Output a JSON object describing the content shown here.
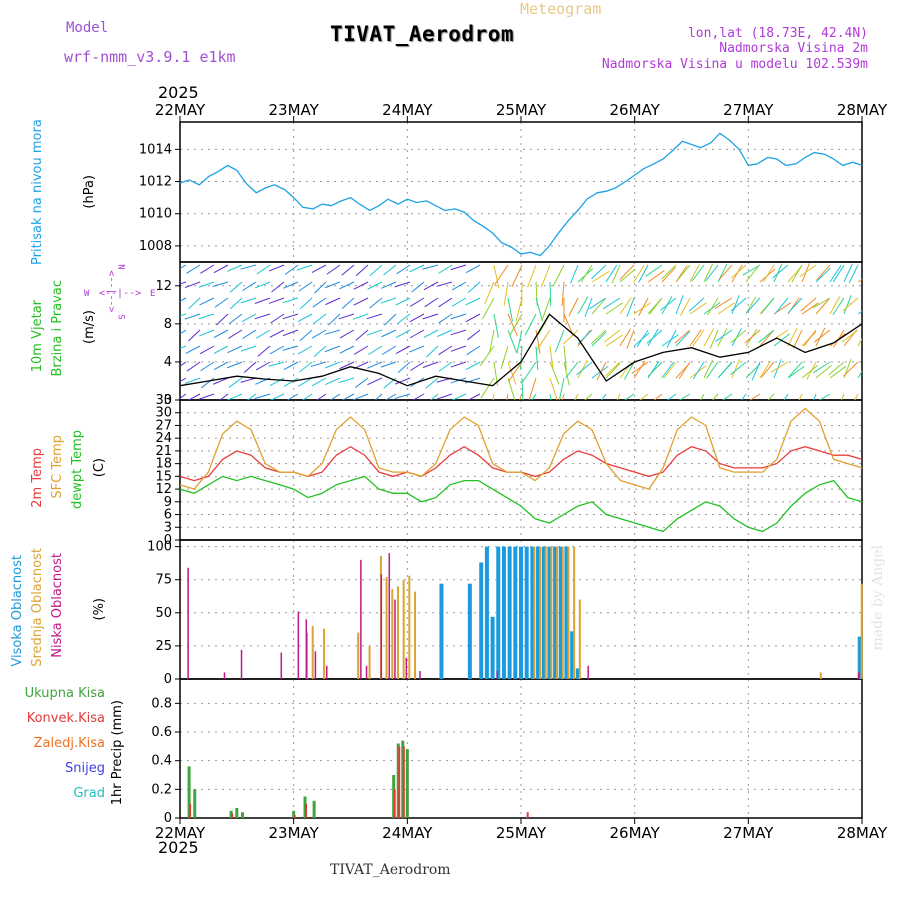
{
  "header": {
    "model_label": "Model",
    "model_name": "wrf-nmm_v3.9.1 e1km",
    "meteogram": "Meteogram",
    "title": "TIVAT_Aerodrom",
    "lonlat": "lon,lat (18.73E, 42.4N)",
    "elevation": "Nadmorska Visina 2m",
    "model_elevation": "Nadmorska Visina u modelu 102.539m",
    "year_top": "2025",
    "year_bottom": "2025",
    "footer": "TIVAT_Aerodrom",
    "credit": "made by Angel"
  },
  "colors": {
    "pressure": "#1ca3e3",
    "temp2m": "#e83c3c",
    "sfc": "#e0a030",
    "dew": "#22c022",
    "high_cloud": "#1a9be0",
    "mid_cloud": "#d9a431",
    "low_cloud": "#c01888",
    "total_precip": "#3fa33f",
    "conv_precip": "#e23a3a",
    "model_label": "#a050d0",
    "info_label": "#b03ad8"
  },
  "chart_data": [
    {
      "type": "line",
      "panel": "pressure",
      "ylabel": "Pritisak na nivou mora",
      "unit": "(hPa)",
      "ylim": [
        1007,
        1015.7
      ],
      "yticks": [
        1008,
        1010,
        1012,
        1014
      ],
      "xticks": [
        "22MAY",
        "23MAY",
        "24MAY",
        "25MAY",
        "26MAY",
        "27MAY",
        "28MAY"
      ],
      "grid": true,
      "series": [
        {
          "x": [
            0,
            0.08,
            0.17,
            0.25,
            0.33,
            0.42,
            0.5,
            0.58,
            0.67,
            0.75,
            0.83,
            0.92,
            1,
            1.08,
            1.17,
            1.25,
            1.33,
            1.42,
            1.5,
            1.58,
            1.67,
            1.75,
            1.83,
            1.92,
            2,
            2.08,
            2.17,
            2.25,
            2.33,
            2.42,
            2.5,
            2.58,
            2.67,
            2.75,
            2.83,
            2.92,
            3,
            3.08,
            3.17,
            3.25,
            3.33,
            3.42,
            3.5,
            3.58,
            3.67,
            3.75,
            3.83,
            3.92,
            4,
            4.08,
            4.17,
            4.25,
            4.33,
            4.42,
            4.5,
            4.58,
            4.67,
            4.75,
            4.83,
            4.92,
            5,
            5.08,
            5.17,
            5.25,
            5.33,
            5.42,
            5.5,
            5.58,
            5.67,
            5.75,
            5.83,
            5.92,
            6
          ],
          "values": [
            1011.9,
            1012.1,
            1011.8,
            1012.3,
            1012.6,
            1013.0,
            1012.7,
            1011.9,
            1011.3,
            1011.6,
            1011.8,
            1011.5,
            1011.0,
            1010.4,
            1010.3,
            1010.6,
            1010.5,
            1010.8,
            1011.0,
            1010.6,
            1010.2,
            1010.5,
            1010.9,
            1010.6,
            1010.9,
            1010.7,
            1010.8,
            1010.5,
            1010.2,
            1010.3,
            1010.1,
            1009.6,
            1009.2,
            1008.8,
            1008.2,
            1007.9,
            1007.5,
            1007.6,
            1007.4,
            1008.0,
            1008.8,
            1009.6,
            1010.2,
            1010.9,
            1011.3,
            1011.4,
            1011.6,
            1012.0,
            1012.4,
            1012.8,
            1013.1,
            1013.4,
            1013.9,
            1014.5,
            1014.3,
            1014.1,
            1014.4,
            1015.0,
            1014.6,
            1014.0,
            1013.0,
            1013.1,
            1013.5,
            1013.4,
            1013.0,
            1013.1,
            1013.5,
            1013.8,
            1013.7,
            1013.4,
            1013.0,
            1013.2,
            1013.0
          ],
          "color": "#1ca3e3"
        }
      ]
    },
    {
      "type": "line",
      "panel": "wind",
      "ylabel": "10m Vjetar",
      "ylabel2": "Brzina i Pravac",
      "unit": "(m/s)",
      "ylim": [
        0,
        14.5
      ],
      "yticks": [
        0,
        4,
        8,
        12
      ],
      "legend": {
        "north": "N",
        "east": "E",
        "west": "W",
        "south": "S",
        "direction_arrows": "<--|-->"
      },
      "grid": true,
      "series": [
        {
          "name": "",
          "x": [
            0,
            0.25,
            0.5,
            0.75,
            1,
            1.25,
            1.5,
            1.75,
            2,
            2.25,
            2.5,
            2.75,
            3,
            3.25,
            3.5,
            3.75,
            4,
            4.25,
            4.5,
            4.75,
            5,
            5.25,
            5.5,
            5.75,
            6
          ],
          "values": [
            1.5,
            2.0,
            2.5,
            2.2,
            2.0,
            2.5,
            3.5,
            2.8,
            1.5,
            2.5,
            2.0,
            1.5,
            4.0,
            9.0,
            6.5,
            2.0,
            4.0,
            5.0,
            5.5,
            4.5,
            5.0,
            6.5,
            5.0,
            6.0,
            8.0
          ],
          "color": "#000000"
        }
      ]
    },
    {
      "type": "line",
      "panel": "temperature",
      "unit": "(C)",
      "ylim": [
        0,
        33
      ],
      "yticks": [
        0,
        3,
        6,
        9,
        12,
        15,
        18,
        21,
        24,
        27,
        30,
        33
      ],
      "grid": true,
      "series": [
        {
          "name": "2m Temp",
          "color": "#e83c3c",
          "x": [
            0,
            0.125,
            0.25,
            0.375,
            0.5,
            0.625,
            0.75,
            0.875,
            1,
            1.125,
            1.25,
            1.375,
            1.5,
            1.625,
            1.75,
            1.875,
            2,
            2.125,
            2.25,
            2.375,
            2.5,
            2.625,
            2.75,
            2.875,
            3,
            3.125,
            3.25,
            3.375,
            3.5,
            3.625,
            3.75,
            3.875,
            4,
            4.125,
            4.25,
            4.375,
            4.5,
            4.625,
            4.75,
            4.875,
            5,
            5.125,
            5.25,
            5.375,
            5.5,
            5.625,
            5.75,
            5.875,
            6
          ],
          "values": [
            15,
            14,
            15,
            19,
            21,
            20,
            17,
            16,
            16,
            15,
            16,
            20,
            22,
            20,
            16,
            15,
            16,
            15,
            17,
            20,
            22,
            20,
            17,
            16,
            16,
            15,
            16,
            19,
            21,
            20,
            18,
            17,
            16,
            15,
            16,
            20,
            22,
            21,
            18,
            17,
            17,
            17,
            18,
            21,
            22,
            21,
            20,
            20,
            19
          ]
        },
        {
          "name": "SFC Temp",
          "color": "#e0a030",
          "x": [
            0,
            0.125,
            0.25,
            0.375,
            0.5,
            0.625,
            0.75,
            0.875,
            1,
            1.125,
            1.25,
            1.375,
            1.5,
            1.625,
            1.75,
            1.875,
            2,
            2.125,
            2.25,
            2.375,
            2.5,
            2.625,
            2.75,
            2.875,
            3,
            3.125,
            3.25,
            3.375,
            3.5,
            3.625,
            3.75,
            3.875,
            4,
            4.125,
            4.25,
            4.375,
            4.5,
            4.625,
            4.75,
            4.875,
            5,
            5.125,
            5.25,
            5.375,
            5.5,
            5.625,
            5.75,
            5.875,
            6
          ],
          "values": [
            13,
            12,
            16,
            25,
            28,
            26,
            18,
            16,
            16,
            15,
            18,
            26,
            29,
            26,
            17,
            16,
            16,
            15,
            18,
            26,
            29,
            27,
            18,
            16,
            16,
            14,
            17,
            25,
            28,
            26,
            18,
            14,
            13,
            12,
            17,
            26,
            29,
            27,
            17,
            16,
            16,
            16,
            19,
            28,
            31,
            28,
            19,
            18,
            17
          ]
        },
        {
          "name": "dewpt Temp",
          "color": "#22c022",
          "x": [
            0,
            0.125,
            0.25,
            0.375,
            0.5,
            0.625,
            0.75,
            0.875,
            1,
            1.125,
            1.25,
            1.375,
            1.5,
            1.625,
            1.75,
            1.875,
            2,
            2.125,
            2.25,
            2.375,
            2.5,
            2.625,
            2.75,
            2.875,
            3,
            3.125,
            3.25,
            3.375,
            3.5,
            3.625,
            3.75,
            3.875,
            4,
            4.125,
            4.25,
            4.375,
            4.5,
            4.625,
            4.75,
            4.875,
            5,
            5.125,
            5.25,
            5.375,
            5.5,
            5.625,
            5.75,
            5.875,
            6
          ],
          "values": [
            12,
            11,
            13,
            15,
            14,
            15,
            14,
            13,
            12,
            10,
            11,
            13,
            14,
            15,
            12,
            11,
            11,
            9,
            10,
            13,
            14,
            14,
            12,
            10,
            8,
            5,
            4,
            6,
            8,
            9,
            6,
            5,
            4,
            3,
            2,
            5,
            7,
            9,
            8,
            5,
            3,
            2,
            4,
            8,
            11,
            13,
            14,
            10,
            9
          ]
        }
      ]
    },
    {
      "type": "bar",
      "panel": "cloud",
      "unit": "(%)",
      "ylim": [
        0,
        105
      ],
      "yticks": [
        0,
        25,
        50,
        75,
        100
      ],
      "grid": true,
      "series": [
        {
          "name": "Visoka Oblacnost",
          "color": "#1a9be0",
          "x": [
            2.3,
            2.55,
            2.65,
            2.7,
            2.75,
            2.8,
            2.85,
            2.9,
            2.95,
            3.0,
            3.05,
            3.1,
            3.15,
            3.2,
            3.25,
            3.3,
            3.35,
            3.4,
            3.45,
            3.5,
            5.98
          ],
          "values": [
            72,
            72,
            88,
            100,
            47,
            100,
            100,
            100,
            100,
            100,
            100,
            100,
            100,
            100,
            100,
            100,
            100,
            100,
            36,
            8,
            32
          ]
        },
        {
          "name": "Srednja Oblacnost",
          "color": "#d9a431",
          "x": [
            1.1,
            1.15,
            1.25,
            1.55,
            1.65,
            1.75,
            1.8,
            1.85,
            1.9,
            1.95,
            2.0,
            2.05,
            3.1,
            3.15,
            3.2,
            3.25,
            3.3,
            3.35,
            3.4,
            3.45,
            3.5,
            5.62,
            5.98
          ],
          "values": [
            35,
            40,
            38,
            35,
            25,
            93,
            77,
            68,
            70,
            75,
            78,
            66,
            100,
            100,
            100,
            100,
            100,
            100,
            100,
            100,
            60,
            5,
            72
          ]
        },
        {
          "name": "Niska Oblacnost",
          "color": "#c01888",
          "x": [
            0.08,
            0.4,
            0.55,
            0.9,
            1.05,
            1.12,
            1.2,
            1.3,
            1.6,
            1.65,
            1.78,
            1.85,
            1.9,
            2.0,
            2.12,
            2.8,
            3.6,
            5.98
          ],
          "values": [
            84,
            5,
            22,
            20,
            51,
            45,
            21,
            10,
            90,
            10,
            79,
            95,
            60,
            16,
            6,
            6,
            10,
            5
          ]
        }
      ]
    },
    {
      "type": "bar",
      "panel": "precip",
      "ylabel": "1hr Precip",
      "unit": "(mm)",
      "ylim": [
        0,
        0.97
      ],
      "yticks": [
        0,
        0.2,
        0.4,
        0.6,
        0.8
      ],
      "grid": true,
      "series": [
        {
          "name": "Ukupna Kisa",
          "color": "#3fa33f",
          "x": [
            0.08,
            0.13,
            0.45,
            0.5,
            0.55,
            1.0,
            1.1,
            1.18,
            1.88,
            1.92,
            1.96,
            2.0
          ],
          "values": [
            0.36,
            0.2,
            0.05,
            0.07,
            0.04,
            0.05,
            0.15,
            0.12,
            0.3,
            0.52,
            0.54,
            0.48
          ]
        },
        {
          "name": "Konvek.Kisa",
          "color": "#e23a3a",
          "x": [
            0.08,
            0.45,
            1.0,
            1.1,
            1.88,
            1.92,
            1.96,
            3.05
          ],
          "values": [
            0.1,
            0.03,
            0.02,
            0.1,
            0.2,
            0.5,
            0.5,
            0.04
          ]
        },
        {
          "name": "Zaledj.Kisa",
          "color": "#f07020",
          "x": [],
          "values": []
        },
        {
          "name": "Snijeg",
          "color": "#4040e0",
          "x": [],
          "values": []
        },
        {
          "name": "Grad",
          "color": "#20c0c0",
          "x": [],
          "values": []
        }
      ]
    }
  ]
}
